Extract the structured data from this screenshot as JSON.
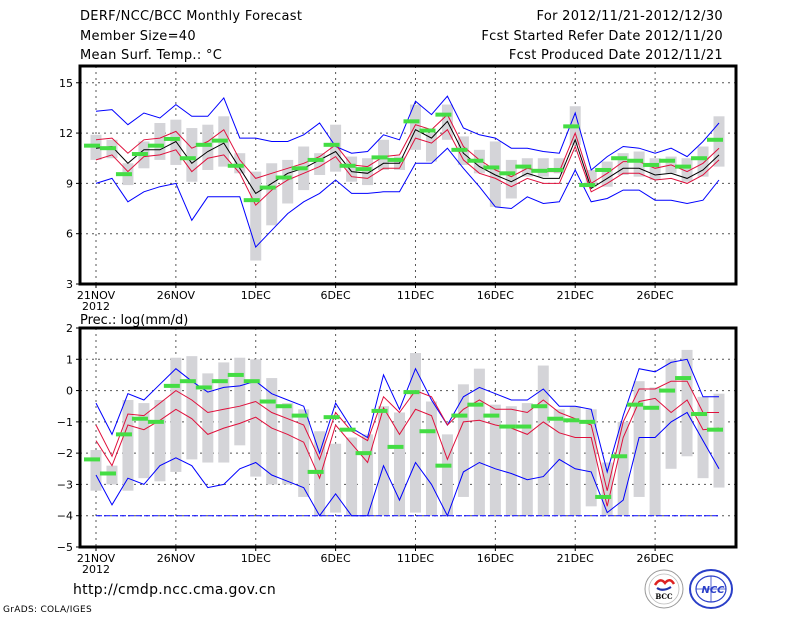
{
  "header": {
    "title": "DERF/NCC/BCC Monthly Forecast",
    "member_size": "Member Size=40",
    "variable": "Mean Surf. Temp.: °C",
    "period": "For 2012/11/21-2012/12/30",
    "start_date": "Fcst Started Refer Date 2012/11/20",
    "produced_date": "Fcst Produced Date 2012/11/21"
  },
  "footer": {
    "url": "http://cmdp.ncc.cma.gov.cn",
    "credit": "GrADS: COLA/IGES",
    "logos": [
      "BCC",
      "NCC"
    ]
  },
  "colors": {
    "max_min": "#0000ff",
    "percentile": "#e0103c",
    "mean": "#000000",
    "median": "#44dd44",
    "box": "#d4d4d8",
    "grid": "#555555"
  },
  "chart_data": [
    {
      "type": "line",
      "title": "Mean Surf. Temp.: °C",
      "xlabel": "",
      "ylabel": "",
      "ylim": [
        3,
        16
      ],
      "yticks": [
        3,
        6,
        9,
        12,
        15
      ],
      "xtick_labels": [
        "21NOV",
        "26NOV",
        "1DEC",
        "6DEC",
        "11DEC",
        "16DEC",
        "21DEC",
        "26DEC"
      ],
      "xtick_days": [
        0,
        5,
        10,
        15,
        20,
        25,
        30,
        35
      ],
      "year_label": "2012",
      "grid": true,
      "days": 40,
      "series": [
        {
          "name": "max",
          "values": [
            13.3,
            13.4,
            12.5,
            13.2,
            12.9,
            13.7,
            13.0,
            13.0,
            14.1,
            11.7,
            11.7,
            11.5,
            11.5,
            11.9,
            12.6,
            11.2,
            10.8,
            10.9,
            11.9,
            11.6,
            13.9,
            13.1,
            14.2,
            12.3,
            11.9,
            11.7,
            11.1,
            11.1,
            10.9,
            10.8,
            13.2,
            9.8,
            10.6,
            11.2,
            11.1,
            10.8,
            11.1,
            10.6,
            11.5,
            12.6,
            11.5
          ]
        },
        {
          "name": "p80",
          "values": [
            11.6,
            11.7,
            10.8,
            11.6,
            11.7,
            12.1,
            11.1,
            11.5,
            12.2,
            10.4,
            9.3,
            9.6,
            9.9,
            10.2,
            10.6,
            11.3,
            10.1,
            10.0,
            10.6,
            10.7,
            12.5,
            12.2,
            13.1,
            11.2,
            10.4,
            9.8,
            9.4,
            9.9,
            9.7,
            9.7,
            12.0,
            9.0,
            9.6,
            10.3,
            10.3,
            9.9,
            10.1,
            9.7,
            10.2,
            11.1,
            10.5
          ]
        },
        {
          "name": "mean",
          "values": [
            11.1,
            11.2,
            10.2,
            11.0,
            11.0,
            11.5,
            10.2,
            10.9,
            11.4,
            9.9,
            8.4,
            9.0,
            9.6,
            9.9,
            10.4,
            10.9,
            9.7,
            9.6,
            10.2,
            10.2,
            12.2,
            11.7,
            12.7,
            10.8,
            10.0,
            9.5,
            9.1,
            9.6,
            9.3,
            9.3,
            11.6,
            8.7,
            9.3,
            9.9,
            9.9,
            9.5,
            9.6,
            9.3,
            9.8,
            10.7,
            10.2
          ]
        },
        {
          "name": "p20",
          "values": [
            10.4,
            10.7,
            9.7,
            10.6,
            10.7,
            11.0,
            9.7,
            10.5,
            10.7,
            9.6,
            7.7,
            8.6,
            9.2,
            9.6,
            10.0,
            10.6,
            9.4,
            9.3,
            9.9,
            9.9,
            11.7,
            11.4,
            12.2,
            10.4,
            9.6,
            9.3,
            8.8,
            9.3,
            9.0,
            9.0,
            11.2,
            8.5,
            9.0,
            9.6,
            9.6,
            9.2,
            9.3,
            9.0,
            9.5,
            10.4,
            9.7
          ]
        },
        {
          "name": "min",
          "values": [
            9.0,
            9.3,
            7.9,
            8.5,
            8.8,
            9.0,
            6.8,
            8.2,
            8.2,
            8.2,
            5.2,
            6.2,
            7.2,
            7.9,
            8.4,
            9.2,
            8.4,
            8.4,
            8.5,
            8.5,
            10.2,
            10.2,
            11.1,
            9.9,
            8.8,
            7.6,
            7.5,
            8.2,
            7.8,
            7.9,
            9.8,
            7.9,
            8.1,
            8.6,
            8.6,
            8.0,
            8.0,
            7.8,
            8.0,
            9.2,
            9.2
          ]
        }
      ],
      "medians": [
        11.25,
        11.1,
        9.55,
        10.75,
        11.25,
        11.65,
        10.5,
        11.3,
        11.55,
        10.05,
        8.0,
        8.75,
        9.35,
        9.9,
        10.4,
        11.3,
        10.05,
        9.85,
        10.55,
        10.4,
        12.7,
        12.15,
        13.1,
        11.0,
        10.35,
        9.95,
        9.6,
        10.0,
        9.75,
        9.8,
        12.4,
        8.9,
        9.8,
        10.5,
        10.35,
        10.1,
        10.35,
        10.0,
        10.5,
        11.6,
        11.0
      ],
      "box_ranges": [
        [
          10.4,
          11.9
        ],
        [
          10.5,
          11.6
        ],
        [
          8.9,
          10.2
        ],
        [
          9.9,
          11.5
        ],
        [
          10.4,
          12.6
        ],
        [
          10.1,
          12.8
        ],
        [
          9.1,
          12.3
        ],
        [
          9.8,
          12.5
        ],
        [
          10.0,
          13.0
        ],
        [
          9.6,
          10.8
        ],
        [
          4.4,
          9.7
        ],
        [
          6.5,
          10.2
        ],
        [
          7.8,
          10.4
        ],
        [
          8.6,
          11.2
        ],
        [
          9.5,
          10.8
        ],
        [
          9.7,
          12.5
        ],
        [
          9.1,
          10.6
        ],
        [
          8.9,
          10.5
        ],
        [
          9.8,
          11.6
        ],
        [
          9.8,
          10.6
        ],
        [
          11.0,
          13.7
        ],
        [
          10.3,
          12.0
        ],
        [
          11.6,
          13.7
        ],
        [
          10.1,
          11.8
        ],
        [
          9.6,
          11.0
        ],
        [
          7.6,
          11.5
        ],
        [
          8.1,
          10.4
        ],
        [
          9.4,
          10.5
        ],
        [
          9.4,
          10.5
        ],
        [
          9.6,
          10.5
        ],
        [
          11.3,
          13.6
        ],
        [
          8.8,
          9.8
        ],
        [
          8.8,
          10.3
        ],
        [
          9.5,
          10.8
        ],
        [
          9.4,
          10.9
        ],
        [
          9.2,
          10.5
        ],
        [
          9.6,
          10.6
        ],
        [
          9.1,
          10.5
        ],
        [
          9.4,
          11.2
        ],
        [
          10.0,
          13.0
        ],
        [
          9.6,
          11.5
        ]
      ]
    },
    {
      "type": "line",
      "title": "Prec.: log(mm/d)",
      "xlabel": "",
      "ylabel": "",
      "ylim": [
        -5,
        2
      ],
      "yticks": [
        -5,
        -4,
        -3,
        -2,
        -1,
        0,
        1,
        2
      ],
      "xtick_labels": [
        "21NOV",
        "26NOV",
        "1DEC",
        "6DEC",
        "11DEC",
        "16DEC",
        "21DEC",
        "26DEC"
      ],
      "xtick_days": [
        0,
        5,
        10,
        15,
        20,
        25,
        30,
        35
      ],
      "year_label": "2012",
      "grid": true,
      "days": 40,
      "series": [
        {
          "name": "max",
          "values": [
            -0.4,
            -1.4,
            -0.1,
            -0.3,
            0.2,
            0.7,
            0.3,
            -0.05,
            0.1,
            0.15,
            0.3,
            -0.1,
            -0.3,
            -0.5,
            -2.0,
            -0.4,
            -1.2,
            -1.5,
            0.5,
            -0.6,
            0.7,
            -0.3,
            -1.1,
            -0.2,
            0.1,
            -0.1,
            -0.3,
            -0.3,
            0.05,
            -0.5,
            -0.5,
            -0.6,
            -2.6,
            -0.8,
            0.7,
            0.6,
            0.9,
            1.0,
            -0.2,
            -0.2
          ]
        },
        {
          "name": "p80",
          "values": [
            -1.1,
            -2.1,
            -0.75,
            -0.8,
            -0.4,
            0.0,
            -0.3,
            -0.7,
            -0.6,
            -0.5,
            -0.35,
            -0.7,
            -0.9,
            -1.1,
            -2.2,
            -0.7,
            -1.3,
            -1.6,
            -0.2,
            -0.7,
            0.0,
            -0.2,
            -1.1,
            -0.6,
            -0.3,
            -0.6,
            -0.6,
            -0.7,
            -0.3,
            -0.7,
            -0.9,
            -1.1,
            -3.2,
            -1.0,
            0.05,
            0.05,
            0.3,
            0.3,
            -0.7,
            -0.7
          ]
        },
        {
          "name": "p50",
          "values": [
            -1.6,
            -2.4,
            -1.1,
            -1.25,
            -0.95,
            -0.6,
            -0.9,
            -1.4,
            -1.2,
            -1.05,
            -0.85,
            -1.2,
            -1.4,
            -1.65,
            -2.8,
            -1.1,
            -1.7,
            -2.3,
            -0.55,
            -1.4,
            -0.6,
            -0.8,
            -2.2,
            -1.0,
            -0.95,
            -1.1,
            -1.2,
            -1.4,
            -1.0,
            -1.35,
            -1.5,
            -1.5,
            -3.7,
            -1.5,
            -0.35,
            -0.25,
            -0.7,
            -0.3,
            -1.25,
            -1.2
          ]
        },
        {
          "name": "min",
          "values": [
            -2.7,
            -3.65,
            -2.8,
            -3.0,
            -2.4,
            -2.15,
            -2.4,
            -3.1,
            -3.0,
            -2.5,
            -2.3,
            -2.7,
            -2.9,
            -3.1,
            -4.0,
            -3.3,
            -4.0,
            -4.0,
            -2.4,
            -3.5,
            -2.3,
            -3.0,
            -4.0,
            -2.6,
            -2.3,
            -2.5,
            -2.65,
            -2.85,
            -2.75,
            -2.2,
            -2.5,
            -2.6,
            -3.9,
            -3.5,
            -1.5,
            -1.5,
            -1.0,
            -0.7,
            -1.6,
            -2.5
          ]
        },
        {
          "name": "floor",
          "values": [
            -4.0,
            -4.0,
            -4.0,
            -4.0,
            -4.0,
            -4.0,
            -4.0,
            -4.0,
            -4.0,
            -4.0,
            -4.0,
            -4.0,
            -4.0,
            -4.0,
            -4.0,
            -4.0,
            -4.0,
            -4.0,
            -4.0,
            -4.0,
            -4.0,
            -4.0,
            -4.0,
            -4.0,
            -4.0,
            -4.0,
            -4.0,
            -4.0,
            -4.0,
            -4.0,
            -4.0,
            -4.0,
            -4.0,
            -4.0,
            -4.0,
            -4.0,
            -4.0,
            -4.0,
            -4.0,
            -4.0
          ]
        }
      ],
      "medians": [
        -2.2,
        -2.65,
        -1.4,
        -0.9,
        -1.0,
        0.15,
        0.3,
        0.1,
        0.3,
        0.5,
        0.3,
        -0.35,
        -0.5,
        -0.8,
        -2.6,
        -0.85,
        -1.25,
        -2.0,
        -0.65,
        -1.8,
        -0.05,
        -1.3,
        -2.4,
        -0.8,
        -0.45,
        -0.8,
        -1.15,
        -1.15,
        -0.5,
        -0.9,
        -0.95,
        -1.0,
        -3.4,
        -2.1,
        -0.45,
        -0.55,
        0.0,
        0.4,
        -0.75,
        -1.25
      ],
      "box_ranges": [
        [
          -3.2,
          -1.9
        ],
        [
          -3.0,
          -2.4
        ],
        [
          -3.2,
          -0.3
        ],
        [
          -2.8,
          -0.4
        ],
        [
          -2.9,
          -0.3
        ],
        [
          -2.6,
          1.05
        ],
        [
          -2.2,
          1.1
        ],
        [
          -2.3,
          0.55
        ],
        [
          -2.3,
          0.9
        ],
        [
          -1.75,
          1.05
        ],
        [
          -2.75,
          1.0
        ],
        [
          -3.0,
          0.4
        ],
        [
          -3.0,
          -0.4
        ],
        [
          -3.4,
          -0.6
        ],
        [
          -4.0,
          -1.3
        ],
        [
          -3.9,
          -1.7
        ],
        [
          -4.0,
          -1.5
        ],
        [
          -4.0,
          -1.4
        ],
        [
          -4.0,
          -0.5
        ],
        [
          -4.0,
          -0.7
        ],
        [
          -3.9,
          1.2
        ],
        [
          -4.0,
          -0.35
        ],
        [
          -4.0,
          -1.4
        ],
        [
          -3.4,
          0.2
        ],
        [
          -4.0,
          0.7
        ],
        [
          -4.0,
          -0.45
        ],
        [
          -4.0,
          -0.5
        ],
        [
          -4.0,
          -0.4
        ],
        [
          -4.0,
          0.8
        ],
        [
          -4.0,
          -0.6
        ],
        [
          -4.0,
          -0.5
        ],
        [
          -3.7,
          -0.6
        ],
        [
          -4.0,
          -2.3
        ],
        [
          -4.0,
          -1.0
        ],
        [
          -3.4,
          0.3
        ],
        [
          -4.0,
          0.1
        ],
        [
          -2.5,
          1.0
        ],
        [
          -2.1,
          1.3
        ],
        [
          -2.8,
          -0.2
        ],
        [
          -3.1,
          -0.1
        ]
      ]
    }
  ]
}
